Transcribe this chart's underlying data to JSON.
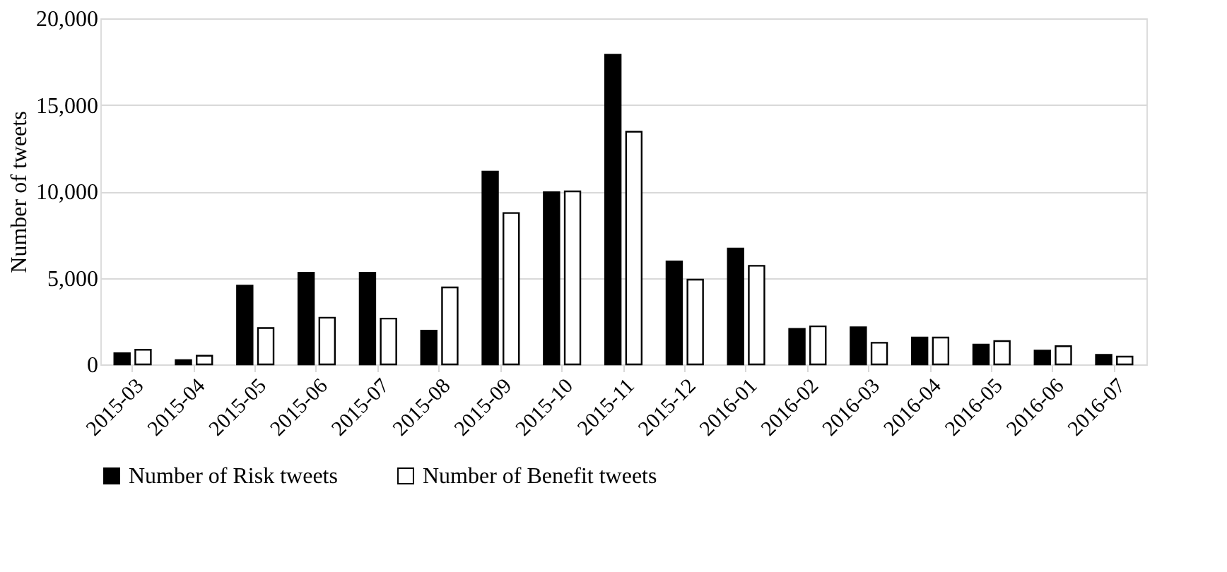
{
  "chart_data": {
    "type": "bar",
    "ylabel": "Number of tweets",
    "categories": [
      "2015-03",
      "2015-04",
      "2015-05",
      "2015-06",
      "2015-07",
      "2015-08",
      "2015-09",
      "2015-10",
      "2015-11",
      "2015-12",
      "2016-01",
      "2016-02",
      "2016-03",
      "2016-04",
      "2016-05",
      "2016-06",
      "2016-07"
    ],
    "series": [
      {
        "name": "Number of Risk tweets",
        "color": "#000000",
        "values": [
          650,
          250,
          4550,
          5300,
          5300,
          1950,
          11150,
          9950,
          17900,
          5950,
          6700,
          2050,
          2150,
          1550,
          1150,
          800,
          550
        ]
      },
      {
        "name": "Number of Benefit tweets",
        "color": "#ffffff",
        "values": [
          850,
          500,
          2100,
          2700,
          2650,
          4450,
          8750,
          10000,
          13450,
          4900,
          5700,
          2200,
          1250,
          1550,
          1350,
          1050,
          450
        ]
      }
    ],
    "ylim": [
      0,
      20000
    ],
    "yticks": [
      0,
      {
        "value": 5000,
        "label": "5,000"
      },
      {
        "value": 10000,
        "label": "10,000"
      },
      {
        "value": 15000,
        "label": "15,000"
      },
      {
        "value": 20000,
        "label": "20,000"
      }
    ],
    "grid": "y",
    "legend": "bottom"
  }
}
